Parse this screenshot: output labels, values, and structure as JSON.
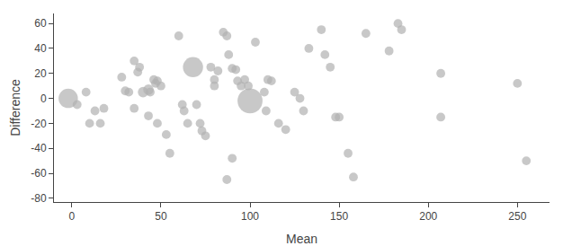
{
  "chart_data": {
    "type": "scatter",
    "xlabel": "Mean",
    "ylabel": "Difference",
    "x": [
      -2,
      3,
      8,
      13,
      18,
      10,
      16,
      28,
      30,
      32,
      35,
      37,
      38,
      40,
      43,
      44,
      46,
      47,
      48,
      50,
      35,
      43,
      48,
      53,
      55,
      60,
      62,
      63,
      65,
      68,
      70,
      72,
      73,
      75,
      78,
      80,
      80,
      82,
      85,
      87,
      87,
      88,
      90,
      90,
      92,
      93,
      95,
      97,
      99,
      100,
      103,
      108,
      109,
      110,
      112,
      116,
      120,
      125,
      128,
      130,
      133,
      140,
      142,
      145,
      148,
      150,
      155,
      158,
      165,
      178,
      183,
      185,
      207,
      207,
      250,
      255
    ],
    "values": [
      0,
      -5,
      5,
      -10,
      -8,
      -20,
      -20,
      17,
      6,
      5,
      30,
      21,
      25,
      5,
      7,
      5,
      15,
      12,
      14,
      10,
      -8,
      -14,
      -20,
      -29,
      -44,
      50,
      -5,
      -10,
      -20,
      25,
      -5,
      -20,
      -26,
      -30,
      25,
      15,
      10,
      22,
      53,
      50,
      -65,
      35,
      24,
      -48,
      23,
      14,
      10,
      15,
      10,
      -2,
      45,
      5,
      -10,
      15,
      14,
      -20,
      -25,
      5,
      0,
      -10,
      40,
      55,
      35,
      25,
      -15,
      -15,
      -44,
      -63,
      52,
      38,
      60,
      55,
      20,
      -15,
      12,
      -50
    ],
    "sizes": [
      120,
      25,
      25,
      25,
      25,
      25,
      25,
      25,
      25,
      25,
      25,
      25,
      25,
      35,
      35,
      25,
      25,
      25,
      25,
      25,
      25,
      25,
      25,
      25,
      25,
      25,
      25,
      25,
      25,
      130,
      25,
      25,
      25,
      25,
      25,
      25,
      25,
      25,
      25,
      25,
      25,
      25,
      25,
      25,
      25,
      25,
      25,
      25,
      25,
      200,
      25,
      25,
      25,
      25,
      25,
      25,
      25,
      25,
      25,
      25,
      25,
      25,
      25,
      25,
      25,
      25,
      25,
      25,
      25,
      25,
      25,
      25,
      25,
      25,
      25,
      25
    ],
    "color": "#b0b0b0",
    "xlim": [
      -10,
      268
    ],
    "ylim": [
      -83,
      68
    ],
    "xticks": [
      0,
      50,
      100,
      150,
      200,
      250
    ],
    "yticks": [
      -80,
      -60,
      -40,
      -20,
      0,
      20,
      40,
      60
    ],
    "grid": false
  }
}
